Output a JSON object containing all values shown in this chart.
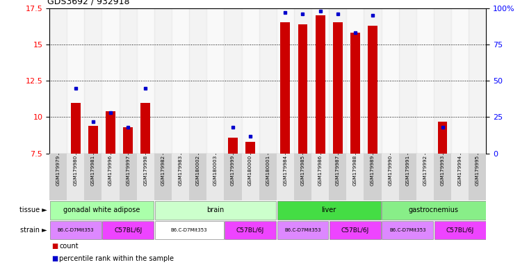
{
  "title": "GDS3692 / 932918",
  "samples": [
    "GSM179979",
    "GSM179980",
    "GSM179981",
    "GSM179996",
    "GSM179997",
    "GSM179998",
    "GSM179982",
    "GSM179983",
    "GSM180002",
    "GSM180003",
    "GSM179999",
    "GSM180000",
    "GSM180001",
    "GSM179984",
    "GSM179985",
    "GSM179986",
    "GSM179987",
    "GSM179988",
    "GSM179989",
    "GSM179990",
    "GSM179991",
    "GSM179992",
    "GSM179993",
    "GSM179994",
    "GSM179995"
  ],
  "count": [
    7.5,
    11.0,
    9.4,
    10.4,
    9.3,
    11.0,
    7.5,
    7.5,
    7.5,
    7.5,
    8.6,
    8.3,
    7.5,
    16.5,
    16.4,
    17.0,
    16.5,
    15.8,
    16.3,
    7.5,
    7.5,
    7.5,
    9.7,
    7.5,
    7.5
  ],
  "percentile": [
    null,
    45,
    22,
    28,
    18,
    45,
    null,
    null,
    null,
    null,
    18,
    12,
    null,
    97,
    96,
    98,
    96,
    83,
    95,
    null,
    null,
    null,
    18,
    null,
    null
  ],
  "ylim": [
    7.5,
    17.5
  ],
  "yticks": [
    7.5,
    10.0,
    12.5,
    15.0,
    17.5
  ],
  "ytick_labels": [
    "7.5",
    "10",
    "12.5",
    "15",
    "17.5"
  ],
  "y2lim": [
    0,
    100
  ],
  "y2ticks": [
    0,
    25,
    50,
    75,
    100
  ],
  "y2tick_labels": [
    "0",
    "25",
    "50",
    "75",
    "100%"
  ],
  "gridlines": [
    10.0,
    12.5,
    15.0
  ],
  "bar_color": "#cc0000",
  "dot_color": "#0000cc",
  "tissues": [
    {
      "label": "gonadal white adipose",
      "start": 0,
      "end": 6,
      "color": "#aaffaa"
    },
    {
      "label": "brain",
      "start": 6,
      "end": 13,
      "color": "#ccffcc"
    },
    {
      "label": "liver",
      "start": 13,
      "end": 19,
      "color": "#44dd44"
    },
    {
      "label": "gastrocnemius",
      "start": 19,
      "end": 25,
      "color": "#88ee88"
    }
  ],
  "strains": [
    {
      "label": "B6.C-D7Mit353",
      "start": 0,
      "end": 3,
      "color": "#dd88ff"
    },
    {
      "label": "C57BL/6J",
      "start": 3,
      "end": 6,
      "color": "#ee44ff"
    },
    {
      "label": "B6.C-D7Mit353",
      "start": 6,
      "end": 10,
      "color": "#ffffff"
    },
    {
      "label": "C57BL/6J",
      "start": 10,
      "end": 13,
      "color": "#ee44ff"
    },
    {
      "label": "B6.C-D7Mit353",
      "start": 13,
      "end": 16,
      "color": "#dd88ff"
    },
    {
      "label": "C57BL/6J",
      "start": 16,
      "end": 19,
      "color": "#ee44ff"
    },
    {
      "label": "B6.C-D7Mit353",
      "start": 19,
      "end": 22,
      "color": "#dd88ff"
    },
    {
      "label": "C57BL/6J",
      "start": 22,
      "end": 25,
      "color": "#ee44ff"
    }
  ],
  "legend_count_label": "count",
  "legend_pct_label": "percentile rank within the sample",
  "bar_width": 0.55,
  "xtick_col_even": "#d8d8d8",
  "xtick_col_odd": "#eeeeee"
}
